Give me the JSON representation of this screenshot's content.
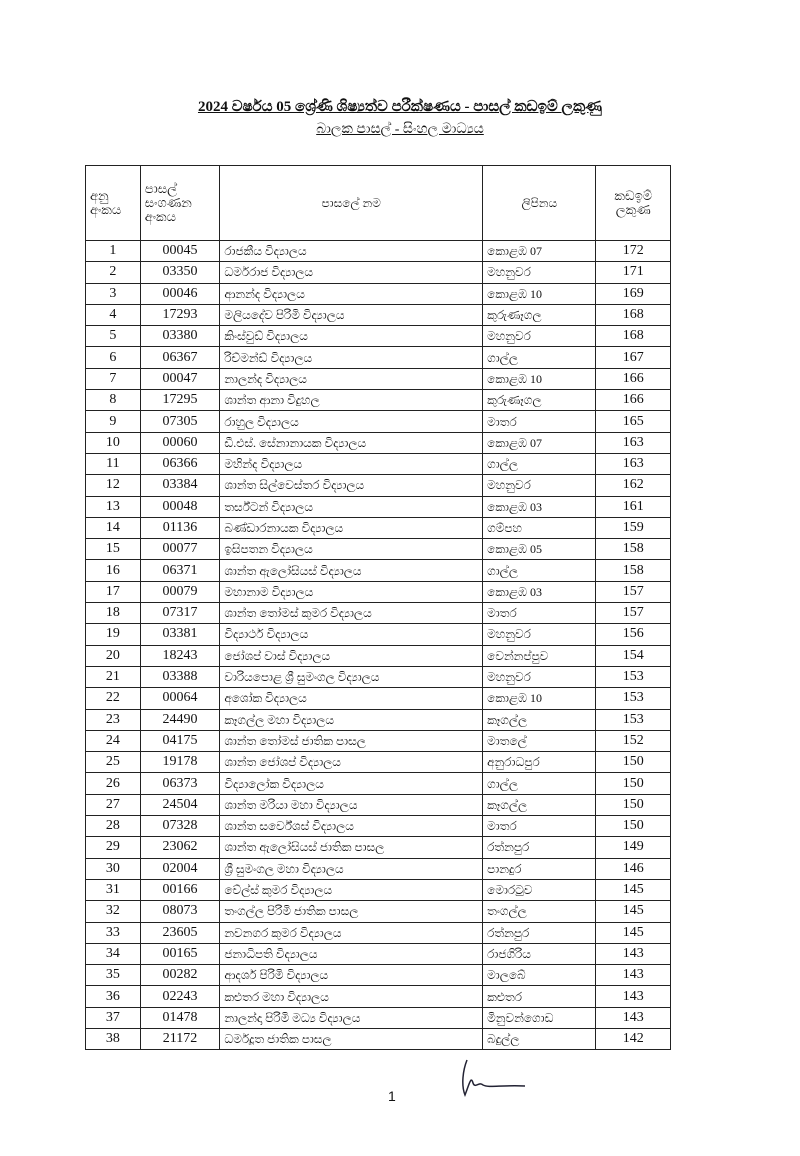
{
  "title": "2024 වර්ෂය 05 ශ්‍රේණි ශිෂ්‍යත්ව පරීක්ෂණය - පාසල් කඩඉම් ලකුණු",
  "subtitle": "බාලක පාසල් - සිංහල මාධ්‍යය",
  "headers": [
    "අනු අංකය",
    "පාසල් සංගණන අංකය",
    "පාසලේ නම",
    "ලිපිනය",
    "කඩඉම් ලකුණ"
  ],
  "rows": [
    [
      "1",
      "00045",
      "රාජකීය විද්‍යාලය",
      "කොළඹ 07",
      "172"
    ],
    [
      "2",
      "03350",
      "ධර්මරාජ විද්‍යාලය",
      "මහනුවර",
      "171"
    ],
    [
      "3",
      "00046",
      "ආනන්ද විද්‍යාලය",
      "කොළඹ 10",
      "169"
    ],
    [
      "4",
      "17293",
      "මලියදේව පිරිමි විද්‍යාලය",
      "කුරුණෑගල",
      "168"
    ],
    [
      "5",
      "03380",
      "කිංස්වුඩ් විද්‍යාලය",
      "මහනුවර",
      "168"
    ],
    [
      "6",
      "06367",
      "රිච්මන්ඩ් විද්‍යාලය",
      "ගාල්ල",
      "167"
    ],
    [
      "7",
      "00047",
      "නාලන්ද විද්‍යාලය",
      "කොළඹ 10",
      "166"
    ],
    [
      "8",
      "17295",
      "ශාන්ත ආනා විදුහල",
      "කුරුණෑගල",
      "166"
    ],
    [
      "9",
      "07305",
      "රාහුල විද්‍යාලය",
      "මාතර",
      "165"
    ],
    [
      "10",
      "00060",
      "ඩී.එස්. සේනානායක විද්‍යාලය",
      "කොළඹ 07",
      "163"
    ],
    [
      "11",
      "06366",
      "මහින්ද විද්‍යාලය",
      "ගාල්ල",
      "163"
    ],
    [
      "12",
      "03384",
      "ශාන්ත සිල්වෙස්තර විද්‍යාලය",
      "මහනුවර",
      "162"
    ],
    [
      "13",
      "00048",
      "තර්ස්ටන් විද්‍යාලය",
      "කොළඹ 03",
      "161"
    ],
    [
      "14",
      "01136",
      "බණ්ඩාරනායක විද්‍යාලය",
      "ගම්පහ",
      "159"
    ],
    [
      "15",
      "00077",
      "ඉසිපතන විද්‍යාලය",
      "කොළඹ 05",
      "158"
    ],
    [
      "16",
      "06371",
      "ශාන්ත ඇලෝසියස් විද්‍යාලය",
      "ගාල්ල",
      "158"
    ],
    [
      "17",
      "00079",
      "මහානාම විද්‍යාලය",
      "කොළඹ 03",
      "157"
    ],
    [
      "18",
      "07317",
      "ශාන්ත තෝමස් කුමර විද්‍යාලය",
      "මාතර",
      "157"
    ],
    [
      "19",
      "03381",
      "විද්‍යාර්ථ විද්‍යාලය",
      "මහනුවර",
      "156"
    ],
    [
      "20",
      "18243",
      "ජෝශප් වාස් විද්‍යාලය",
      "වෙන්නප්පුව",
      "154"
    ],
    [
      "21",
      "03388",
      "වාරියපොළ ශ්‍රී සුමංගල විද්‍යාලය",
      "මහනුවර",
      "153"
    ],
    [
      "22",
      "00064",
      "අශෝක විද්‍යාලය",
      "කොළඹ 10",
      "153"
    ],
    [
      "23",
      "24490",
      "කෑගල්ල මහා විද්‍යාලය",
      "කෑගල්ල",
      "153"
    ],
    [
      "24",
      "04175",
      "ශාන්ත තෝමස් ජාතික පාසල",
      "මාතලේ",
      "152"
    ],
    [
      "25",
      "19178",
      "ශාන්ත ජෝශප් විද්‍යාලය",
      "අනුරාධපුර",
      "150"
    ],
    [
      "26",
      "06373",
      "විද්‍යාලෝක විද්‍යාලය",
      "ගාල්ල",
      "150"
    ],
    [
      "27",
      "24504",
      "ශාන්ත මරියා මහා විද්‍යාලය",
      "කෑගල්ල",
      "150"
    ],
    [
      "28",
      "07328",
      "ශාන්ත සර්වේශස් විද්‍යාලය",
      "මාතර",
      "150"
    ],
    [
      "29",
      "23062",
      "ශාන්ත ඇලෝසියස් ජාතික පාසල",
      "රත්නපුර",
      "149"
    ],
    [
      "30",
      "02004",
      "ශ්‍රී සුමංගල මහා විද්‍යාලය",
      "පානදුර",
      "146"
    ],
    [
      "31",
      "00166",
      "වේල්ස් කුමර විද්‍යාලය",
      "මොරටුව",
      "145"
    ],
    [
      "32",
      "08073",
      "තංගල්ල පිරිමි ජාතික පාසල",
      "තංගල්ල",
      "145"
    ],
    [
      "33",
      "23605",
      "නවනගර කුමර විද්‍යාලය",
      "රත්නපුර",
      "145"
    ],
    [
      "34",
      "00165",
      "ජනාධිපති විද්‍යාලය",
      "රාජගිරිය",
      "143"
    ],
    [
      "35",
      "00282",
      "ආදර්ශ පිරිමි විද්‍යාලය",
      "මාලබේ",
      "143"
    ],
    [
      "36",
      "02243",
      "කළුතර මහා විද්‍යාලය",
      "කළුතර",
      "143"
    ],
    [
      "37",
      "01478",
      "නාලන්දා පිරිමි මධ්‍ය විද්‍යාලය",
      "මිනුවන්ගොඩ",
      "143"
    ],
    [
      "38",
      "21172",
      "ධර්මදූත ජාතික පාසල",
      "බදුල්ල",
      "142"
    ]
  ],
  "page_number": "1"
}
